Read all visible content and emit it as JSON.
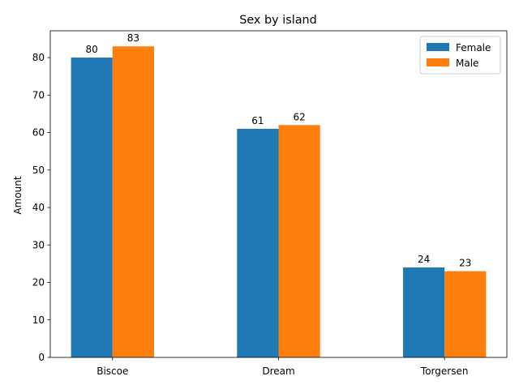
{
  "chart_data": {
    "type": "bar",
    "title": "Sex by island",
    "xlabel": "",
    "ylabel": "Amount",
    "categories": [
      "Biscoe",
      "Dream",
      "Torgersen"
    ],
    "series": [
      {
        "name": "Female",
        "values": [
          80,
          61,
          24
        ],
        "color": "#1f77b4"
      },
      {
        "name": "Male",
        "values": [
          83,
          62,
          23
        ],
        "color": "#ff7f0e"
      }
    ],
    "ylim": [
      0,
      87.15
    ],
    "yticks": [
      0,
      10,
      20,
      30,
      40,
      50,
      60,
      70,
      80
    ],
    "grid": false,
    "legend_position": "top-right"
  }
}
